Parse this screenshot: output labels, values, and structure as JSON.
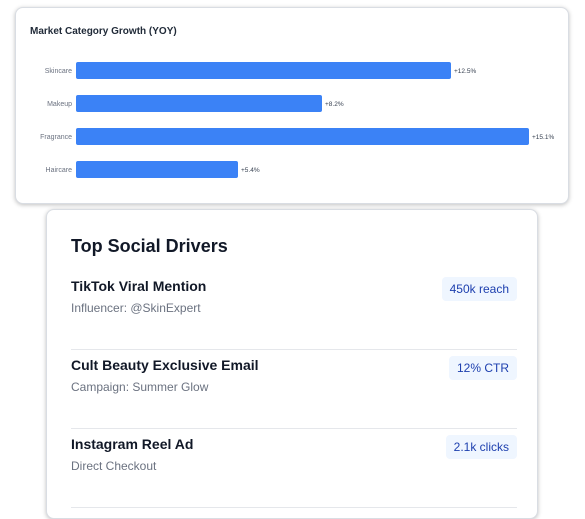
{
  "chart_data": {
    "type": "bar",
    "orientation": "horizontal",
    "title": "Market Category Growth (YOY)",
    "categories": [
      "Skincare",
      "Makeup",
      "Fragrance",
      "Haircare"
    ],
    "values": [
      12.5,
      8.2,
      15.1,
      5.4
    ],
    "data_labels": [
      "+12.5%",
      "+8.2%",
      "+15.1%",
      "+5.4%"
    ],
    "xlim": [
      0,
      15.1
    ],
    "grid": false,
    "bar_color": "#3b82f6"
  },
  "drivers": {
    "title": "Top Social Drivers",
    "items": [
      {
        "name": "TikTok Viral Mention",
        "sub": "Influencer: @SkinExpert",
        "badge": "450k reach"
      },
      {
        "name": "Cult Beauty Exclusive Email",
        "sub": "Campaign: Summer Glow",
        "badge": "12% CTR"
      },
      {
        "name": "Instagram Reel Ad",
        "sub": "Direct Checkout",
        "badge": "2.1k clicks"
      }
    ]
  }
}
